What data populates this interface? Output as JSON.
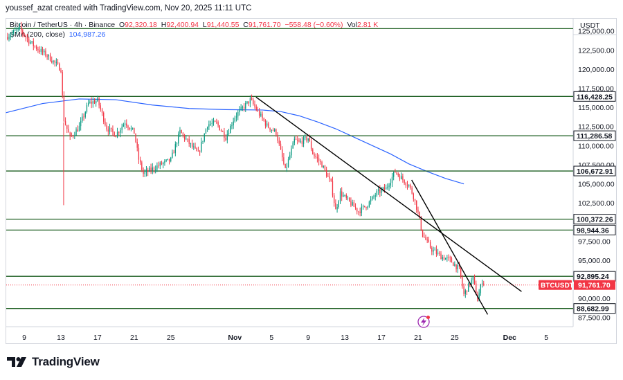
{
  "header": {
    "attribution": "youssef_azat created with TradingView.com, Nov 20, 2025 11:11 UTC"
  },
  "legend": {
    "symbol": "Bitcoin / TetherUS · 4h · Binance",
    "o_label": "O",
    "o_value": "92,320.18",
    "h_label": "H",
    "h_value": "92,400.94",
    "l_label": "L",
    "l_value": "91,440.55",
    "c_label": "C",
    "c_value": "91,761.70",
    "change": "−558.48 (−0.60%)",
    "vol_label": "Vol",
    "vol_value": "2.81 K",
    "sma_label": "SMA (200, close)",
    "sma_value": "104,987.26"
  },
  "axis": {
    "currency": "USDT",
    "price_ticks": [
      "125,000.00",
      "122,500.00",
      "120,000.00",
      "117,500.00",
      "115,000.00",
      "112,500.00",
      "110,000.00",
      "107,500.00",
      "105,000.00",
      "102,500.00",
      "97,500.00",
      "95,000.00",
      "90,000.00",
      "87,500.00"
    ],
    "time_ticks": [
      "9",
      "13",
      "17",
      "21",
      "25",
      "Nov",
      "5",
      "9",
      "13",
      "17",
      "21",
      "25",
      "Dec",
      "5"
    ]
  },
  "chart_data": {
    "type": "candlestick",
    "symbol": "BTCUSDT",
    "interval": "4h",
    "y_range": [
      86300,
      126600
    ],
    "x_range": [
      "2025-10-07",
      "2025-12-06"
    ],
    "horizontal_levels": [
      {
        "price": 125300,
        "label": ""
      },
      {
        "price": 116428.25,
        "label": "116,428.25"
      },
      {
        "price": 111286.58,
        "label": "111,286.58"
      },
      {
        "price": 106672.91,
        "label": "106,672.91"
      },
      {
        "price": 100372.26,
        "label": "100,372.26"
      },
      {
        "price": 98944.36,
        "label": "98,944.36"
      },
      {
        "price": 92895.24,
        "label": "92,895.24"
      },
      {
        "price": 88682.99,
        "label": "88,682.99"
      }
    ],
    "last_price": {
      "symbol": "BTCUSDT",
      "value": 91761.7,
      "label": "91,761.70"
    },
    "trendlines": [
      {
        "from": {
          "day": 27.3,
          "price": 116350
        },
        "to": {
          "day": 56.3,
          "price": 90900
        }
      },
      {
        "from": {
          "day": 44.3,
          "price": 105500
        },
        "to": {
          "day": 52.6,
          "price": 87900
        }
      }
    ],
    "sma200": {
      "name": "SMA (200, close)",
      "points": [
        [
          0,
          114300
        ],
        [
          4,
          115500
        ],
        [
          8,
          116100
        ],
        [
          12,
          116000
        ],
        [
          16,
          115300
        ],
        [
          20,
          114850
        ],
        [
          24,
          114700
        ],
        [
          28,
          114650
        ],
        [
          30,
          114450
        ],
        [
          32,
          113900
        ],
        [
          34,
          113100
        ],
        [
          36,
          112200
        ],
        [
          38,
          111100
        ],
        [
          40,
          110000
        ],
        [
          42,
          108900
        ],
        [
          44,
          107600
        ],
        [
          46,
          106600
        ],
        [
          48,
          105700
        ],
        [
          50,
          104987
        ]
      ]
    },
    "price_path": [
      [
        0,
        124200
      ],
      [
        1.5,
        125300
      ],
      [
        2.5,
        123700
      ],
      [
        3.5,
        122600
      ],
      [
        4.5,
        121800
      ],
      [
        6,
        120000
      ],
      [
        6.3,
        113500
      ],
      [
        7,
        111000
      ],
      [
        8,
        112400
      ],
      [
        9,
        115500
      ],
      [
        10,
        115900
      ],
      [
        11,
        112300
      ],
      [
        12,
        111400
      ],
      [
        13,
        113100
      ],
      [
        14,
        111700
      ],
      [
        14.5,
        108200
      ],
      [
        15,
        106300
      ],
      [
        17,
        107600
      ],
      [
        18,
        108100
      ],
      [
        19,
        111800
      ],
      [
        20,
        110300
      ],
      [
        21,
        108900
      ],
      [
        22,
        112800
      ],
      [
        23,
        112900
      ],
      [
        24,
        111100
      ],
      [
        25,
        113800
      ],
      [
        26,
        115100
      ],
      [
        26.7,
        116000
      ],
      [
        27.5,
        114400
      ],
      [
        28.5,
        112600
      ],
      [
        29.5,
        111700
      ],
      [
        30.5,
        106700
      ],
      [
        31.5,
        110700
      ],
      [
        32,
        110400
      ],
      [
        33,
        111000
      ],
      [
        33.5,
        109000
      ],
      [
        34.5,
        107500
      ],
      [
        35.5,
        105000
      ],
      [
        36,
        101500
      ],
      [
        36.5,
        103800
      ],
      [
        37.5,
        102600
      ],
      [
        38.5,
        101400
      ],
      [
        39.5,
        102300
      ],
      [
        40.5,
        103800
      ],
      [
        41.5,
        104400
      ],
      [
        42.5,
        106600
      ],
      [
        43.3,
        105600
      ],
      [
        44,
        104800
      ],
      [
        44.5,
        103400
      ],
      [
        45,
        101200
      ],
      [
        45.5,
        98300
      ],
      [
        46.5,
        96400
      ],
      [
        47.5,
        95500
      ],
      [
        48.5,
        95000
      ],
      [
        49.5,
        93800
      ],
      [
        50,
        90500
      ],
      [
        50.5,
        91600
      ],
      [
        51,
        92600
      ],
      [
        51.5,
        89800
      ],
      [
        52,
        92300
      ],
      [
        52.3,
        91761.7
      ]
    ],
    "volatility": 650,
    "colors": {
      "up": "#089981",
      "down": "#f23645",
      "level": "#1b5e20",
      "trend": "#000000",
      "sma": "#2962ff",
      "last": "#f23645"
    }
  },
  "footer": {
    "brand": "TradingView"
  }
}
